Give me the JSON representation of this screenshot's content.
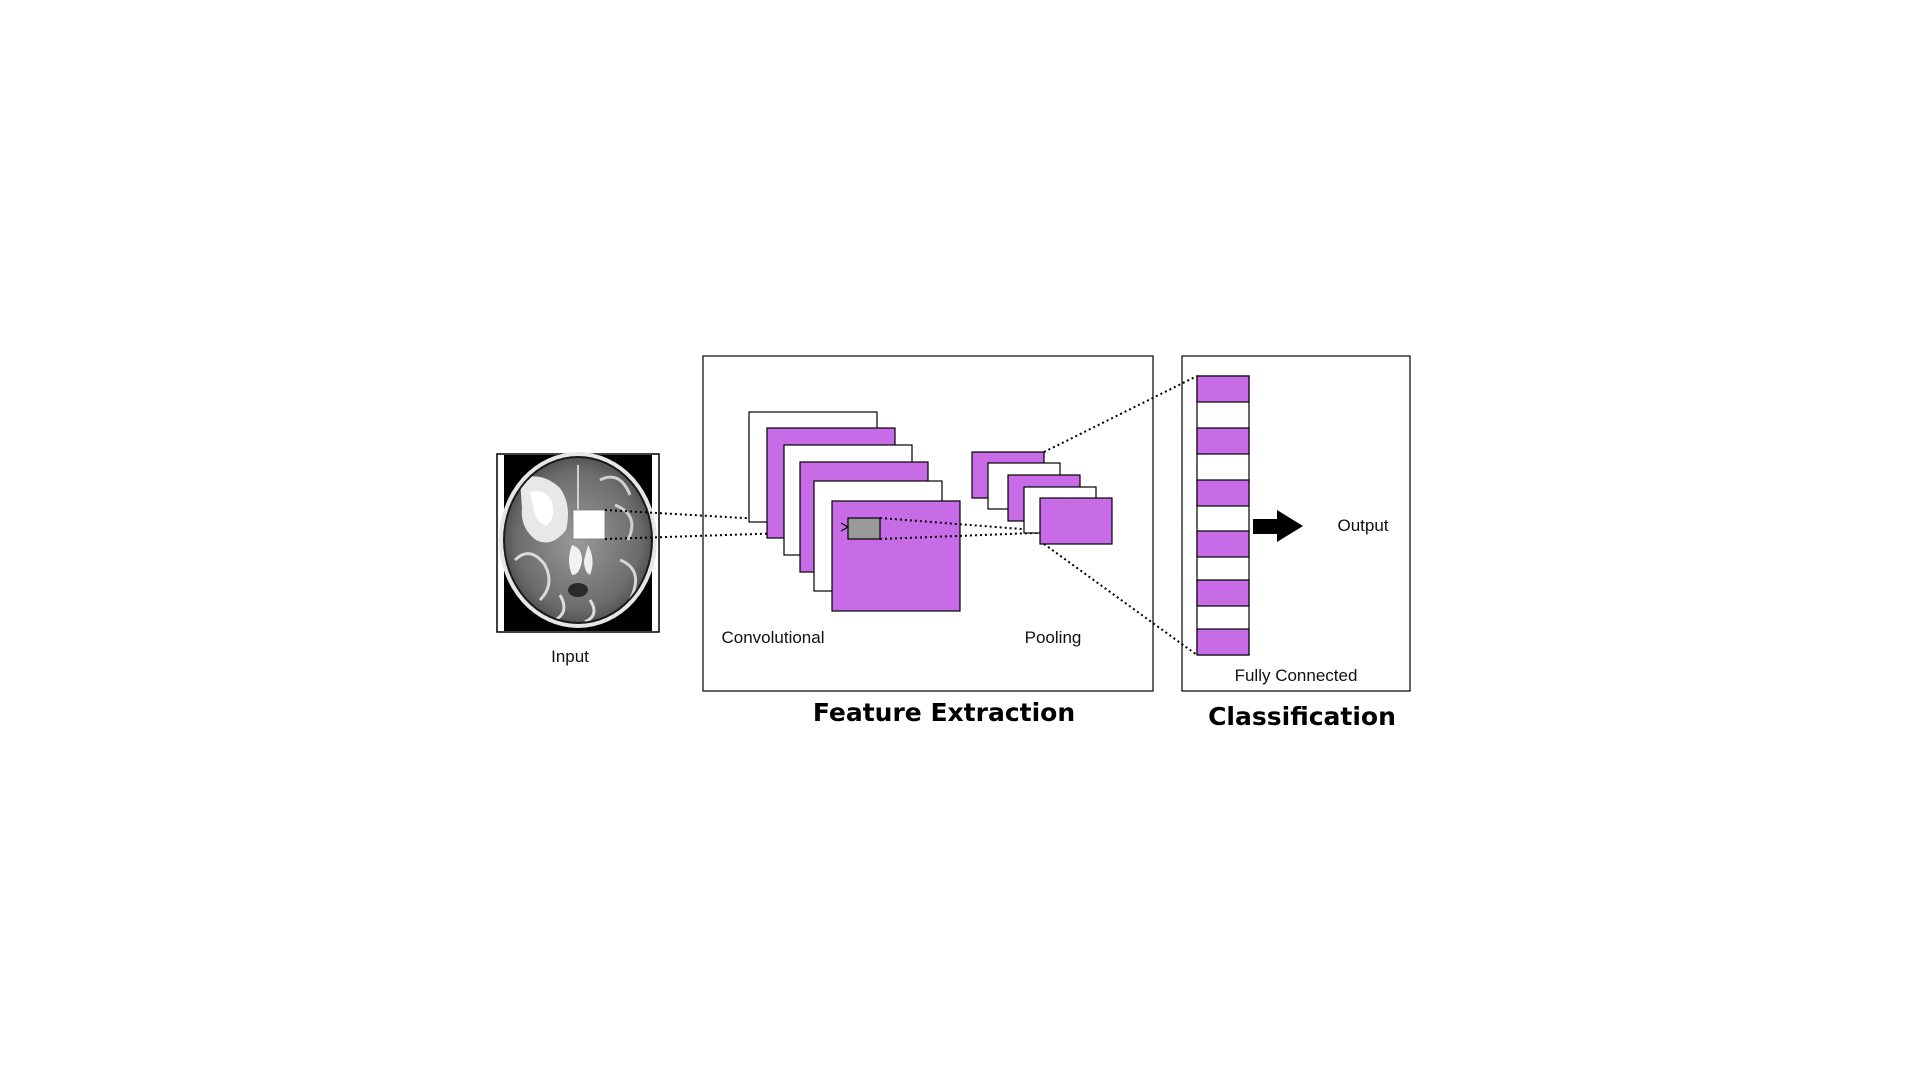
{
  "labels": {
    "input": "Input",
    "convolutional": "Convolutional",
    "pooling": "Pooling",
    "output": "Output",
    "fully_connected": "Fully Connected"
  },
  "sections": {
    "feature_extraction": "Feature Extraction",
    "classification": "Classification"
  },
  "colors": {
    "feature_map": "#c86be6",
    "receptive_field": "#999999",
    "stroke": "#000000",
    "background": "#ffffff"
  },
  "icons": {
    "input_image": "brain-mri-scan-icon",
    "output_arrow": "right-arrow-icon"
  }
}
